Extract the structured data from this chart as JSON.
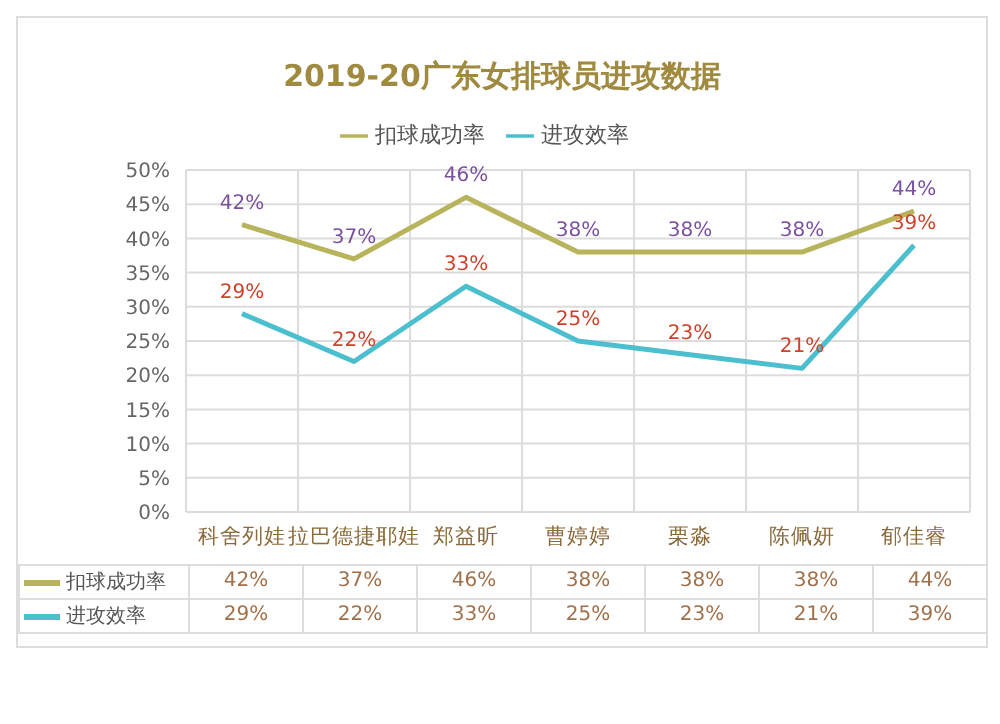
{
  "chart_data": {
    "type": "line",
    "title": "2019-20广东女排球员进攻数据",
    "categories": [
      "科舍列娃",
      "拉巴德捷耶娃",
      "郑益昕",
      "曹婷婷",
      "栗淼",
      "陈佩妍",
      "郁佳睿"
    ],
    "series": [
      {
        "name": "扣球成功率",
        "color": "#b8b45c",
        "values": [
          42,
          37,
          46,
          38,
          38,
          38,
          44
        ],
        "value_labels": [
          "42%",
          "37%",
          "46%",
          "38%",
          "38%",
          "38%",
          "44%"
        ]
      },
      {
        "name": "进攻效率",
        "color": "#4cbfcf",
        "values": [
          29,
          22,
          33,
          25,
          23,
          21,
          39
        ],
        "value_labels": [
          "29%",
          "22%",
          "33%",
          "25%",
          "23%",
          "21%",
          "39%"
        ]
      }
    ],
    "ylim": [
      0,
      50
    ],
    "yticks": [
      {
        "value": 0,
        "label": "0%"
      },
      {
        "value": 5,
        "label": "5%"
      },
      {
        "value": 10,
        "label": "10%"
      },
      {
        "value": 15,
        "label": "15%"
      },
      {
        "value": 20,
        "label": "20%"
      },
      {
        "value": 25,
        "label": "25%"
      },
      {
        "value": 30,
        "label": "30%"
      },
      {
        "value": 35,
        "label": "35%"
      },
      {
        "value": 40,
        "label": "40%"
      },
      {
        "value": 45,
        "label": "45%"
      },
      {
        "value": 50,
        "label": "50%"
      }
    ],
    "grid": true,
    "legend": "top",
    "marker": "none",
    "line_style": "solid"
  }
}
